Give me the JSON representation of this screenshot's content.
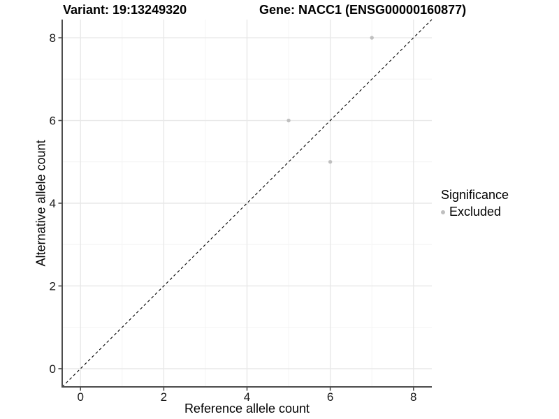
{
  "titles": {
    "left": "Variant: 19:13249320",
    "right": "Gene: NACC1 (ENSG00000160877)"
  },
  "chart_data": {
    "type": "scatter",
    "title": "Variant: 19:13249320   Gene: NACC1 (ENSG00000160877)",
    "xlabel": "Reference allele count",
    "ylabel": "Alternative allele count",
    "xlim": [
      -0.44,
      8.44
    ],
    "ylim": [
      -0.44,
      8.44
    ],
    "xticks": [
      0,
      2,
      4,
      6,
      8
    ],
    "yticks": [
      0,
      2,
      4,
      6,
      8
    ],
    "minor_ticks": [
      1,
      3,
      5,
      7
    ],
    "grid": true,
    "series": [
      {
        "name": "Excluded",
        "color": "#bfbfbf",
        "points": [
          {
            "x": 5,
            "y": 6
          },
          {
            "x": 6,
            "y": 5
          },
          {
            "x": 7,
            "y": 8
          }
        ]
      }
    ],
    "reference_line": {
      "type": "identity",
      "slope": 1,
      "intercept": 0,
      "style": "dashed",
      "color": "#000000"
    },
    "legend": {
      "title": "Significance",
      "position": "right",
      "entries": [
        {
          "label": "Excluded",
          "color": "#bfbfbf"
        }
      ]
    },
    "colors": {
      "axis": "#4d4d4d",
      "grid_major": "#e8e8e8",
      "grid_minor": "#f4f4f4",
      "point": "#bfbfbf",
      "background": "#ffffff"
    }
  }
}
